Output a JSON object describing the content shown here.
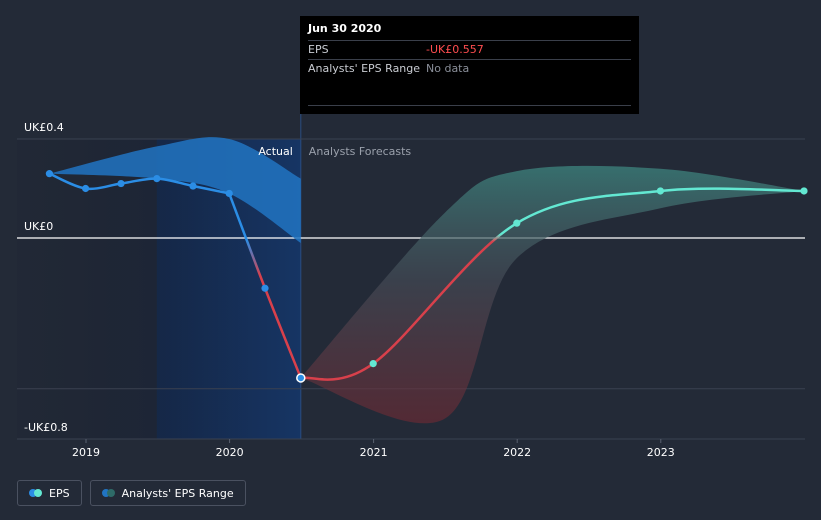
{
  "chart_data": {
    "type": "line",
    "x_ticks": [
      "2019",
      "2020",
      "2021",
      "2022",
      "2023"
    ],
    "y_ticks": [
      "UK£0.4",
      "UK£0",
      "-UK£0.8"
    ],
    "ylim": [
      -0.8,
      0.4
    ],
    "section_labels": {
      "actual": "Actual",
      "forecast": "Analysts Forecasts"
    },
    "eps_actual": [
      {
        "x": "2018-09-30",
        "y": 0.26
      },
      {
        "x": "2018-12-31",
        "y": 0.2
      },
      {
        "x": "2019-03-31",
        "y": 0.22
      },
      {
        "x": "2019-06-30",
        "y": 0.24
      },
      {
        "x": "2019-09-30",
        "y": 0.21
      },
      {
        "x": "2019-12-31",
        "y": 0.18
      },
      {
        "x": "2020-03-31",
        "y": -0.2
      },
      {
        "x": "2020-06-30",
        "y": -0.557
      }
    ],
    "eps_forecast": [
      {
        "x": "2020-06-30",
        "y": -0.557
      },
      {
        "x": "2020-12-31",
        "y": -0.5
      },
      {
        "x": "2021-12-31",
        "y": 0.06
      },
      {
        "x": "2022-12-31",
        "y": 0.19
      },
      {
        "x": "2023-12-31",
        "y": 0.19
      }
    ],
    "past_range": {
      "x": [
        "2018-09-30",
        "2019-06-30",
        "2019-12-31",
        "2020-06-30"
      ],
      "high": [
        0.26,
        0.37,
        0.4,
        0.24
      ],
      "low": [
        0.26,
        0.24,
        0.18,
        -0.02
      ]
    },
    "forecast_range": {
      "x": [
        "2020-06-30",
        "2021-06-30",
        "2021-12-31",
        "2022-12-31",
        "2023-12-31"
      ],
      "high": [
        -0.557,
        0.1,
        0.27,
        0.28,
        0.19
      ],
      "low": [
        -0.557,
        -0.72,
        -0.08,
        0.12,
        0.19
      ]
    },
    "colors": {
      "eps_actual": "#2b8de5",
      "eps_negative": "#d8404b",
      "eps_forecast": "#63e8d2",
      "range_past": "#2174c2",
      "range_forecast": "#2e6b68"
    }
  },
  "tooltip": {
    "date": "Jun 30 2020",
    "rows": [
      {
        "key": "EPS",
        "value": "-UK£0.557"
      },
      {
        "key": "Analysts' EPS Range",
        "value": "No data"
      }
    ]
  },
  "legend": {
    "eps_label": "EPS",
    "range_label": "Analysts' EPS Range"
  }
}
